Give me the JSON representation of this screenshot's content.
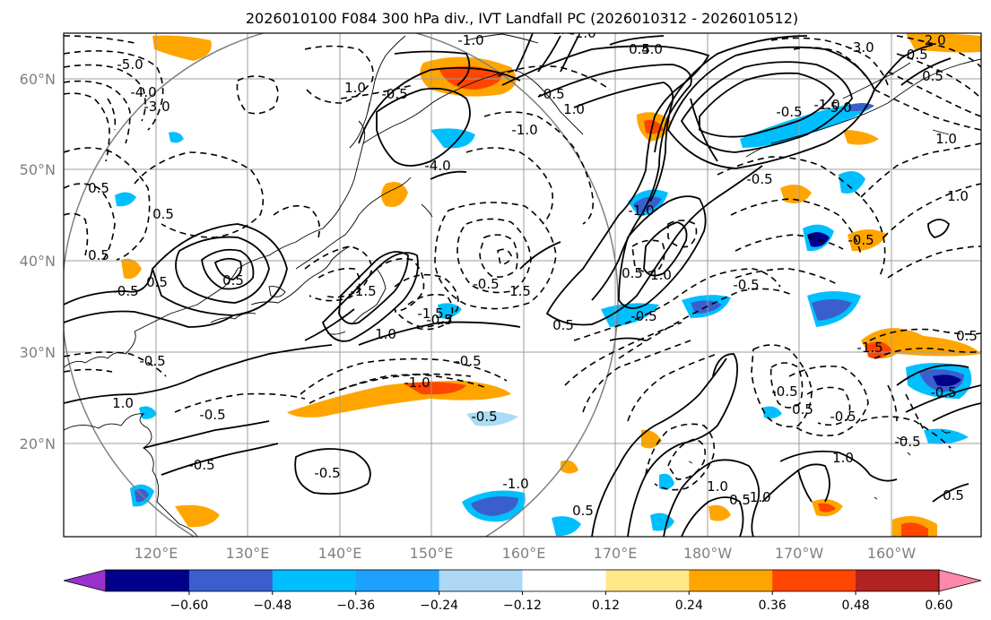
{
  "title": "2026010100 F084 300 hPa div., IVT Landfall PC (2026010312 - 2026010512)",
  "map": {
    "lon_labels": [
      "120°E",
      "130°E",
      "140°E",
      "150°E",
      "160°E",
      "170°E",
      "180°W",
      "170°W",
      "160°W"
    ],
    "lat_labels": [
      "60°N",
      "50°N",
      "40°N",
      "30°N",
      "20°N"
    ],
    "colors": {
      "neg_strong": "#0a0a8c",
      "neg_med": "#3a5fcd",
      "neg": "#00bfff",
      "neg_light": "#aadcf5",
      "pos_light": "#ffe38a",
      "pos": "#ffa500",
      "pos_med": "#ff4500",
      "pos_strong": "#b22222"
    },
    "contour_labels": [
      "-5.0",
      "-4.0",
      "-3.0",
      "-1.0",
      "-0.5",
      "-1.0",
      "4.0",
      "-3.0",
      "-2.0",
      "1.0",
      "-1.0",
      "-0.5",
      "-1.0",
      "-1.0",
      "1.0",
      "-0.5",
      "-5.0",
      "-4.0",
      "0.5",
      "0.5",
      "0.5",
      "-0.5",
      "0.5",
      "-0.5",
      "0.5",
      "-0.5",
      "1.5",
      "0.5",
      "-0.5",
      "-0.5",
      "1.0",
      "-0.5",
      "0.5",
      "1.0",
      "0.5",
      "-1.5",
      "-0.5",
      "-1.0",
      "-0.5",
      "1.0",
      "-1.5",
      "-0.5",
      "-1.0",
      "0.5",
      "1.0",
      "-0.5",
      "-1.5",
      "0.5",
      "-0.5",
      "0.5",
      "1.0",
      "-0.5",
      "1.0",
      "0.5",
      "-1.0",
      "-0.5",
      "-0.5",
      "-0.5",
      "0.5",
      "1.0",
      "-0.5",
      "-0.5",
      "-1.0",
      "-0.5",
      "0.5"
    ]
  },
  "colorbar": {
    "ticks": [
      "−0.60",
      "−0.48",
      "−0.36",
      "−0.24",
      "−0.12",
      "0.12",
      "0.24",
      "0.36",
      "0.48",
      "0.60"
    ],
    "colors": [
      "#9932cc",
      "#00008b",
      "#3a5fcd",
      "#00bfff",
      "#1ea0ff",
      "#add8f5",
      "#ffffff",
      "#ffe88a",
      "#ffa500",
      "#ff4500",
      "#b22222",
      "#ff88aa"
    ]
  }
}
